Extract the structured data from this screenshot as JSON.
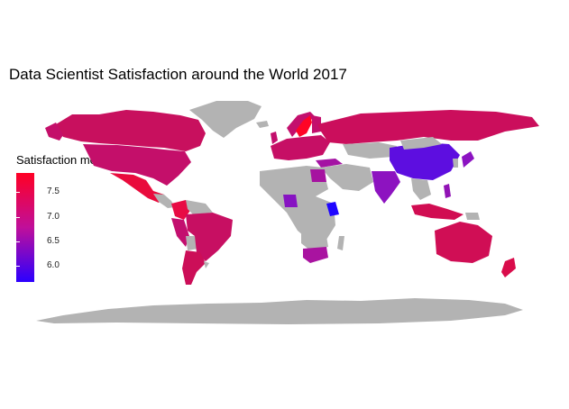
{
  "title": "Data Scientist Satisfaction around the World 2017",
  "legend": {
    "title": "Satisfaction mean",
    "ticks": [
      "7.5",
      "7.0",
      "6.5",
      "6.0"
    ],
    "tick_values": [
      7.5,
      7.0,
      6.5,
      6.0
    ],
    "range": [
      5.7,
      7.9
    ],
    "low_color": "#2b00ff",
    "mid_color": "#c00f9a",
    "high_color": "#ff0024"
  },
  "map_data": {
    "type": "choropleth",
    "no_data_color": "#b3b3b3",
    "approx_values": {
      "Sweden": 7.8,
      "Mexico": 7.6,
      "Colombia": 7.5,
      "USA": 7.2,
      "Canada": 7.2,
      "Russia": 7.1,
      "Brazil": 7.1,
      "Australia": 7.1,
      "Argentina": 7.0,
      "Europe": 7.1,
      "South Africa": 6.7,
      "Egypt": 6.6,
      "Turkey": 6.7,
      "Nigeria": 6.3,
      "India": 6.4,
      "China": 6.0,
      "Japan": 6.5,
      "Indonesia": 6.9,
      "Philippines": 6.6,
      "New Zealand": 7.3,
      "Kenya": 5.8
    }
  }
}
